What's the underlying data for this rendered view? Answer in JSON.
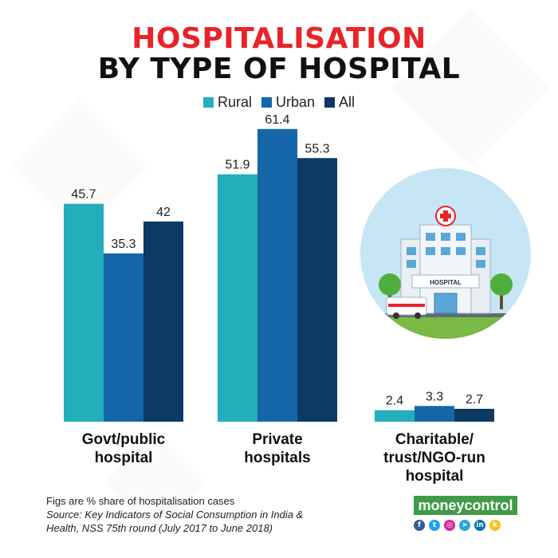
{
  "header": {
    "title_line1": "HOSPITALISATION",
    "title_line2": "BY TYPE OF HOSPITAL"
  },
  "colors": {
    "rural": "#22aebb",
    "urban": "#1566a8",
    "all": "#0c3a63",
    "title_red": "#e8232a",
    "brand_green": "#3f9b47"
  },
  "chart_data": {
    "type": "bar",
    "categories": [
      "Govt/public hospital",
      "Private hospitals",
      "Charitable/ trust/NGO-run hospital"
    ],
    "category_lines": [
      [
        "Govt/public",
        "hospital"
      ],
      [
        "Private",
        "hospitals"
      ],
      [
        "Charitable/",
        "trust/NGO-run",
        "hospital"
      ]
    ],
    "series": [
      {
        "name": "Rural",
        "values": [
          45.7,
          51.9,
          2.4
        ]
      },
      {
        "name": "Urban",
        "values": [
          35.3,
          61.4,
          3.3
        ]
      },
      {
        "name": "All",
        "values": [
          42,
          55.3,
          2.7
        ]
      }
    ],
    "value_labels": [
      [
        "45.7",
        "35.3",
        "42"
      ],
      [
        "51.9",
        "61.4",
        "55.3"
      ],
      [
        "2.4",
        "3.3",
        "2.7"
      ]
    ],
    "legend_position": "top-center",
    "grid": false,
    "ylim": [
      0,
      65
    ]
  },
  "footer": {
    "note": "Figs are % share of hospitalisation cases",
    "source_line1": "Source: Key Indicators of Social Consumption in India &",
    "source_line2": "Health, NSS 75th round (July 2017 to June 2018)",
    "brand": "moneycontrol",
    "social_icons": [
      "facebook-icon",
      "twitter-icon",
      "instagram-icon",
      "telegram-icon",
      "linkedin-icon",
      "koo-icon"
    ]
  },
  "illustration": {
    "sign_text": "HOSPITAL"
  }
}
